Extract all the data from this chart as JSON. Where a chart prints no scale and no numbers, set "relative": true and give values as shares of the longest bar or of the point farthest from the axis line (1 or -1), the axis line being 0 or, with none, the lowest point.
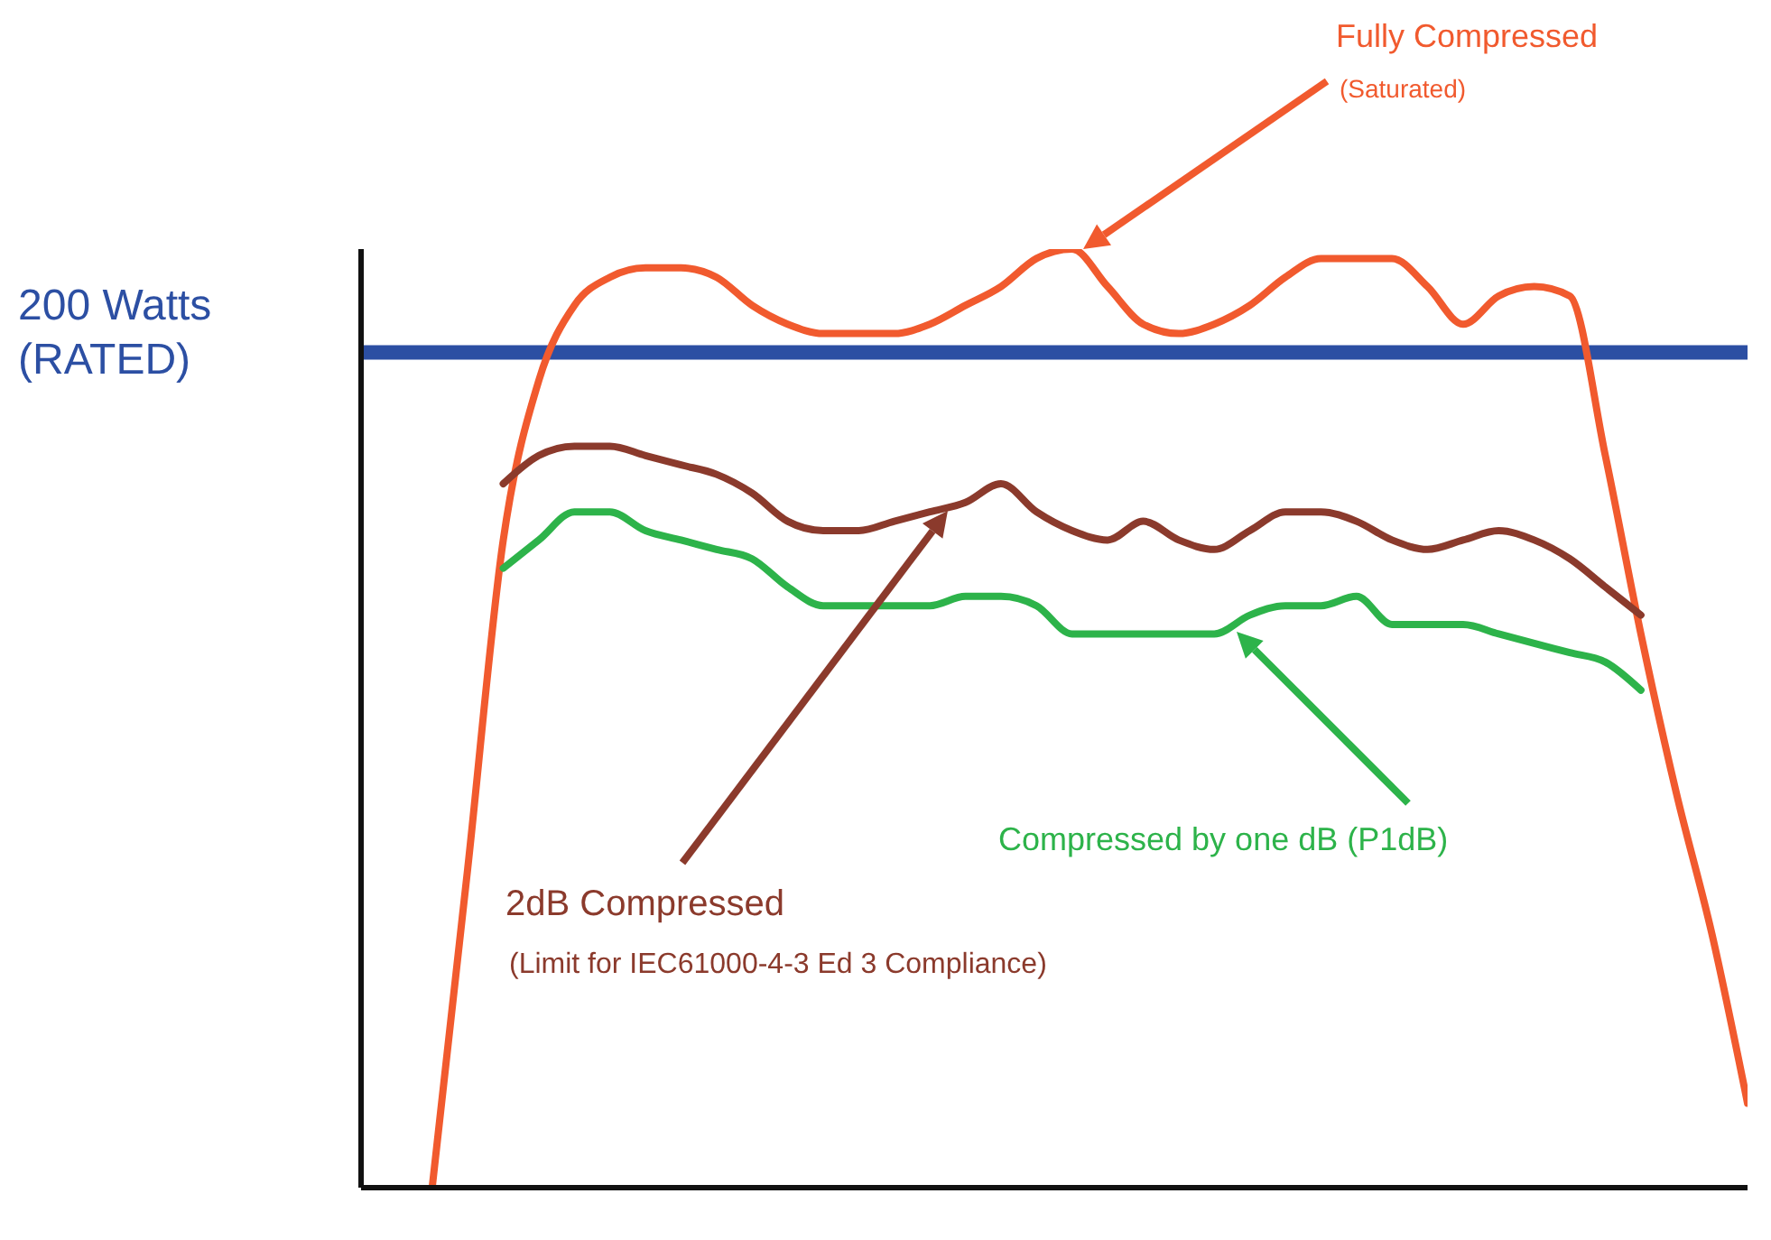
{
  "chart_data": {
    "type": "line",
    "relative": true,
    "categories": [
      null,
      null,
      null,
      null,
      null,
      null,
      null,
      null,
      null,
      null,
      null,
      null,
      null,
      null,
      null,
      null,
      null,
      null,
      null,
      null,
      null,
      null,
      null,
      null,
      null,
      null,
      null,
      null,
      null,
      null,
      null,
      null,
      null,
      null,
      null,
      null,
      null,
      null,
      null,
      null
    ],
    "series": [
      {
        "color": "#f15a2e",
        "values": [
          null,
          null,
          0,
          0.34,
          0.69,
          0.86,
          0.94,
          0.97,
          0.98,
          0.98,
          0.97,
          0.94,
          0.92,
          0.91,
          0.91,
          0.91,
          0.92,
          0.94,
          0.96,
          0.99,
          1,
          0.96,
          0.92,
          0.91,
          0.92,
          0.94,
          0.97,
          0.99,
          0.99,
          0.99,
          0.96,
          0.92,
          0.95,
          0.96,
          0.95,
          0.78,
          0.59,
          0.42,
          0.27,
          0.09
        ]
      },
      {
        "color": "#8b3a2c",
        "values": [
          null,
          null,
          null,
          null,
          0.75,
          0.78,
          0.79,
          0.79,
          0.78,
          0.77,
          0.76,
          0.74,
          0.71,
          0.7,
          0.7,
          0.71,
          0.72,
          0.73,
          0.75,
          0.72,
          0.7,
          0.69,
          0.71,
          0.69,
          0.68,
          0.7,
          0.72,
          0.72,
          0.71,
          0.69,
          0.68,
          0.69,
          0.7,
          0.69,
          0.67,
          0.64,
          0.61,
          null,
          null,
          null
        ]
      },
      {
        "color": "#2db34a",
        "values": [
          null,
          null,
          null,
          null,
          0.66,
          0.69,
          0.72,
          0.72,
          0.7,
          0.69,
          0.68,
          0.67,
          0.64,
          0.62,
          0.62,
          0.62,
          0.62,
          0.63,
          0.63,
          0.62,
          0.59,
          0.59,
          0.59,
          0.59,
          0.59,
          0.61,
          0.62,
          0.62,
          0.63,
          0.6,
          0.6,
          0.6,
          0.59,
          0.58,
          0.57,
          0.56,
          0.53,
          null,
          null,
          null
        ]
      }
    ],
    "ref_lines": [
      {
        "axis": "y",
        "value": 0.89,
        "label": "200 Watts\n(RATED)",
        "color": "#2c4fa3"
      }
    ],
    "annotations": [
      "Fully Compressed",
      "(Saturated)",
      "2dB Compressed",
      "(Limit for IEC61000-4-3 Ed 3 Compliance)",
      "Compressed by one dB (P1dB)"
    ],
    "grid": false,
    "legend": false,
    "marker": "none",
    "line_style": "solid"
  }
}
